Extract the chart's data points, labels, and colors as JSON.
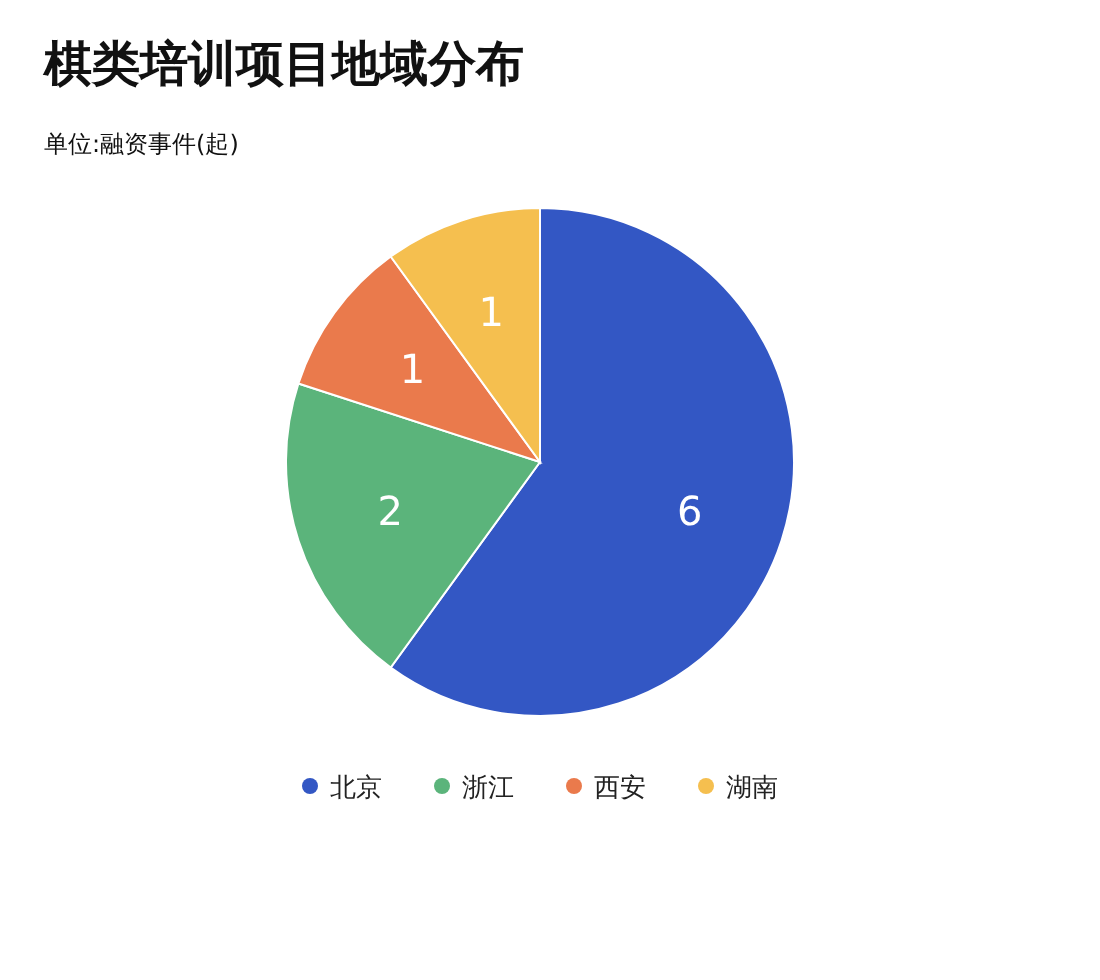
{
  "chart_data": {
    "type": "pie",
    "title": "棋类培训项目地域分布",
    "subtitle": "单位:融资事件(起)",
    "categories": [
      "北京",
      "浙江",
      "西安",
      "湖南"
    ],
    "values": [
      6,
      2,
      1,
      1
    ],
    "colors": [
      "#3357c4",
      "#5bb47b",
      "#ea7a4c",
      "#f5bf4f"
    ],
    "data_labels": true,
    "legend": "bottom"
  }
}
